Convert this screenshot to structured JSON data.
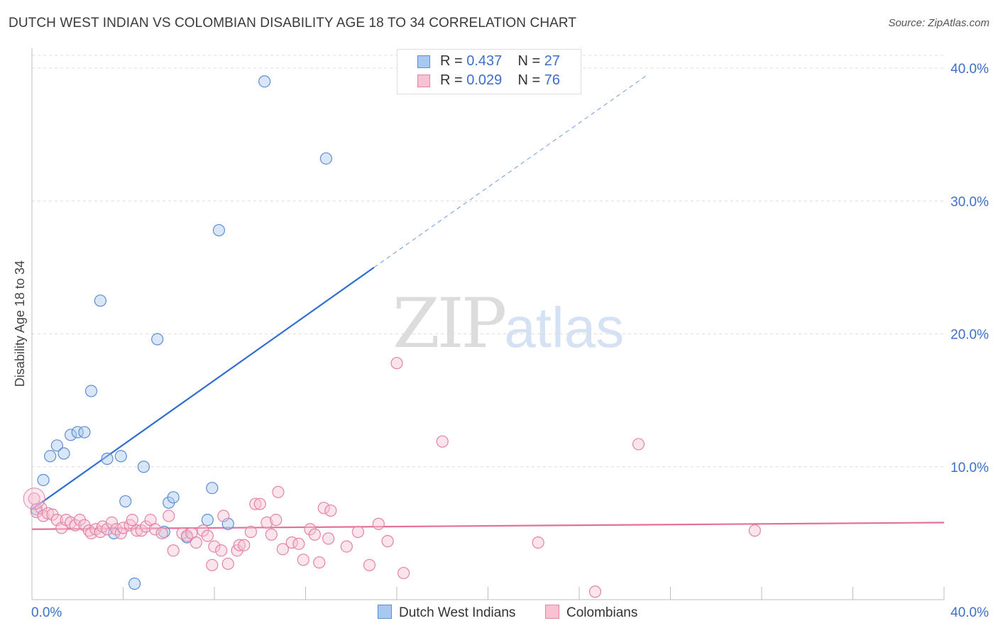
{
  "title": "DUTCH WEST INDIAN VS COLOMBIAN DISABILITY AGE 18 TO 34 CORRELATION CHART",
  "source": "Source: ZipAtlas.com",
  "watermark": {
    "zip": "ZIP",
    "atlas": "atlas"
  },
  "legend": {
    "rows": [
      {
        "r_label": "R = ",
        "r_value": "0.437",
        "n_label": "N = ",
        "n_value": "27",
        "color": "#a9c8f0",
        "border": "#5b8fd4"
      },
      {
        "r_label": "R = ",
        "r_value": "0.029",
        "n_label": "N = ",
        "n_value": "76",
        "color": "#f7c3d3",
        "border": "#e384a5"
      }
    ]
  },
  "bottom_legend": [
    {
      "label": "Dutch West Indians",
      "color": "#a9c8f0",
      "border": "#5b8fd4"
    },
    {
      "label": "Colombians",
      "color": "#f7c3d3",
      "border": "#e384a5"
    }
  ],
  "chart_data": {
    "type": "scatter",
    "title": "DUTCH WEST INDIAN VS COLOMBIAN DISABILITY AGE 18 TO 34 CORRELATION CHART",
    "xlabel": "",
    "ylabel": "Disability Age 18 to 34",
    "xlim": [
      0,
      40
    ],
    "ylim": [
      0,
      40
    ],
    "x_tick_labels": [
      "0.0%",
      "40.0%"
    ],
    "y_ticks": [
      10,
      20,
      30,
      40
    ],
    "y_tick_labels": [
      "10.0%",
      "20.0%",
      "30.0%",
      "40.0%"
    ],
    "grid": true,
    "colors": {
      "blue": "#5b8fd4",
      "blue_fill": "rgba(169,200,240,0.45)",
      "blue_line": "#2f6fd0",
      "pink": "#e384a5",
      "pink_fill": "rgba(247,195,211,0.45)",
      "pink_line": "#e4709a",
      "axis_text": "#3d6fc9"
    },
    "series": [
      {
        "name": "Dutch West Indians",
        "points": [
          [
            0.2,
            6.8
          ],
          [
            0.5,
            9.0
          ],
          [
            0.8,
            10.8
          ],
          [
            1.1,
            11.6
          ],
          [
            1.4,
            11.0
          ],
          [
            1.7,
            12.4
          ],
          [
            2.0,
            12.6
          ],
          [
            2.3,
            12.6
          ],
          [
            2.6,
            15.7
          ],
          [
            3.0,
            22.5
          ],
          [
            3.3,
            10.6
          ],
          [
            3.6,
            5.0
          ],
          [
            3.9,
            10.8
          ],
          [
            4.1,
            7.4
          ],
          [
            4.5,
            1.2
          ],
          [
            4.9,
            10.0
          ],
          [
            5.8,
            5.1
          ],
          [
            6.0,
            7.3
          ],
          [
            6.2,
            7.7
          ],
          [
            5.5,
            19.6
          ],
          [
            6.8,
            4.7
          ],
          [
            7.7,
            6.0
          ],
          [
            7.9,
            8.4
          ],
          [
            8.2,
            27.8
          ],
          [
            8.6,
            5.7
          ],
          [
            10.2,
            39.0
          ],
          [
            12.9,
            33.2
          ]
        ],
        "trend": {
          "x0": 0.0,
          "y0": 6.8,
          "x1": 15.0,
          "y1": 25.0,
          "dash_to_x": 27.0,
          "dash_to_y": 39.5
        }
      },
      {
        "name": "Colombians",
        "points": [
          [
            0.1,
            7.6
          ],
          [
            0.2,
            6.6
          ],
          [
            0.4,
            6.9
          ],
          [
            0.5,
            6.3
          ],
          [
            0.7,
            6.5
          ],
          [
            0.9,
            6.4
          ],
          [
            1.1,
            6.0
          ],
          [
            1.3,
            5.4
          ],
          [
            1.5,
            6.0
          ],
          [
            1.7,
            5.8
          ],
          [
            1.9,
            5.6
          ],
          [
            2.1,
            6.0
          ],
          [
            2.3,
            5.6
          ],
          [
            2.5,
            5.2
          ],
          [
            2.6,
            5.0
          ],
          [
            2.8,
            5.3
          ],
          [
            3.0,
            5.1
          ],
          [
            3.1,
            5.5
          ],
          [
            3.3,
            5.3
          ],
          [
            3.5,
            5.8
          ],
          [
            3.7,
            5.3
          ],
          [
            3.9,
            5.0
          ],
          [
            4.0,
            5.4
          ],
          [
            4.3,
            5.6
          ],
          [
            4.4,
            6.0
          ],
          [
            4.6,
            5.2
          ],
          [
            4.8,
            5.2
          ],
          [
            5.0,
            5.5
          ],
          [
            5.2,
            6.0
          ],
          [
            5.4,
            5.3
          ],
          [
            5.7,
            5.0
          ],
          [
            6.0,
            6.3
          ],
          [
            6.2,
            3.7
          ],
          [
            6.6,
            5.0
          ],
          [
            6.8,
            4.8
          ],
          [
            7.0,
            5.0
          ],
          [
            7.2,
            4.3
          ],
          [
            7.5,
            5.2
          ],
          [
            7.7,
            4.8
          ],
          [
            7.9,
            2.6
          ],
          [
            8.0,
            4.0
          ],
          [
            8.3,
            3.7
          ],
          [
            8.4,
            6.3
          ],
          [
            8.6,
            2.7
          ],
          [
            9.0,
            3.7
          ],
          [
            9.1,
            4.1
          ],
          [
            9.3,
            4.1
          ],
          [
            9.6,
            5.1
          ],
          [
            9.8,
            7.2
          ],
          [
            10.0,
            7.2
          ],
          [
            10.3,
            5.8
          ],
          [
            10.5,
            4.9
          ],
          [
            10.7,
            6.0
          ],
          [
            10.8,
            8.1
          ],
          [
            11.0,
            3.8
          ],
          [
            11.4,
            4.3
          ],
          [
            11.7,
            4.2
          ],
          [
            11.9,
            3.0
          ],
          [
            12.2,
            5.3
          ],
          [
            12.4,
            4.9
          ],
          [
            12.6,
            2.8
          ],
          [
            12.8,
            6.9
          ],
          [
            13.0,
            4.6
          ],
          [
            13.1,
            6.7
          ],
          [
            13.8,
            4.0
          ],
          [
            14.3,
            5.1
          ],
          [
            14.8,
            2.6
          ],
          [
            15.2,
            5.7
          ],
          [
            15.6,
            4.4
          ],
          [
            16.0,
            17.8
          ],
          [
            16.3,
            2.0
          ],
          [
            18.0,
            11.9
          ],
          [
            22.2,
            4.3
          ],
          [
            24.7,
            0.6
          ],
          [
            26.6,
            11.7
          ],
          [
            31.7,
            5.2
          ]
        ],
        "trend": {
          "x0": 0.0,
          "y0": 5.3,
          "x1": 40.0,
          "y1": 5.8
        }
      }
    ]
  }
}
